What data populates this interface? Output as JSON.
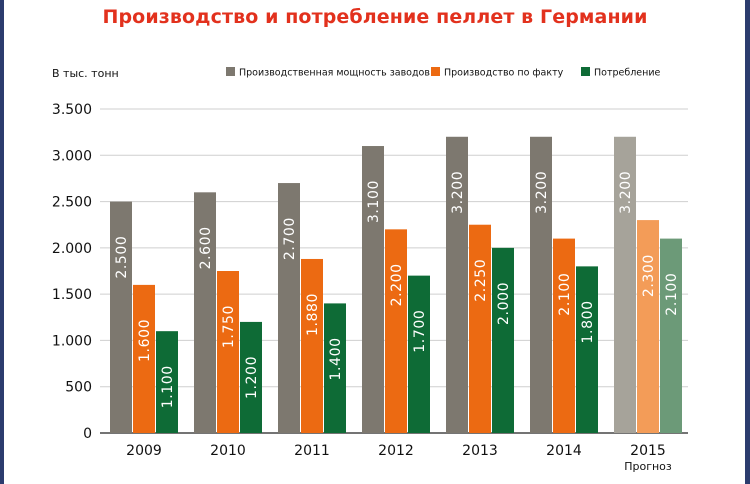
{
  "title": "Производство и потребление пеллет в Германии",
  "chart_data": {
    "type": "bar",
    "title": "Производство и потребление пеллет в Германии",
    "ylabel": "В тыс. тонн",
    "xlabel": "",
    "ylim": [
      0,
      3500
    ],
    "yticks": [
      0,
      500,
      1000,
      1500,
      2000,
      2500,
      3000,
      3500
    ],
    "ytick_labels": [
      "0",
      "500",
      "1.000",
      "1.500",
      "2.000",
      "2.500",
      "3.000",
      "3.500"
    ],
    "categories": [
      "2009",
      "2010",
      "2011",
      "2012",
      "2013",
      "2014",
      "2015"
    ],
    "category_notes": [
      "",
      "",
      "",
      "",
      "",
      "",
      "Прогноз"
    ],
    "grid": true,
    "legend_position": "top",
    "series": [
      {
        "name": "Производственная мощность заводов",
        "color": "#7d786f",
        "forecast_color": "#a6a39a",
        "values": [
          2500,
          2600,
          2700,
          3100,
          3200,
          3200,
          3200
        ],
        "labels": [
          "2.500",
          "2.600",
          "2.700",
          "3.100",
          "3.200",
          "3.200",
          "3.200"
        ]
      },
      {
        "name": "Производство по факту",
        "color": "#ec6a12",
        "forecast_color": "#f39c58",
        "values": [
          1600,
          1750,
          1880,
          2200,
          2250,
          2100,
          2300
        ],
        "labels": [
          "1.600",
          "1.750",
          "1.880",
          "2.200",
          "2.250",
          "2.100",
          "2.300"
        ]
      },
      {
        "name": "Потребление",
        "color": "#0e6b36",
        "forecast_color": "#6c9a78",
        "values": [
          1100,
          1200,
          1400,
          1700,
          2000,
          1800,
          2100
        ],
        "labels": [
          "1.100",
          "1.200",
          "1.400",
          "1.700",
          "2.000",
          "1.800",
          "2.100"
        ]
      }
    ]
  }
}
